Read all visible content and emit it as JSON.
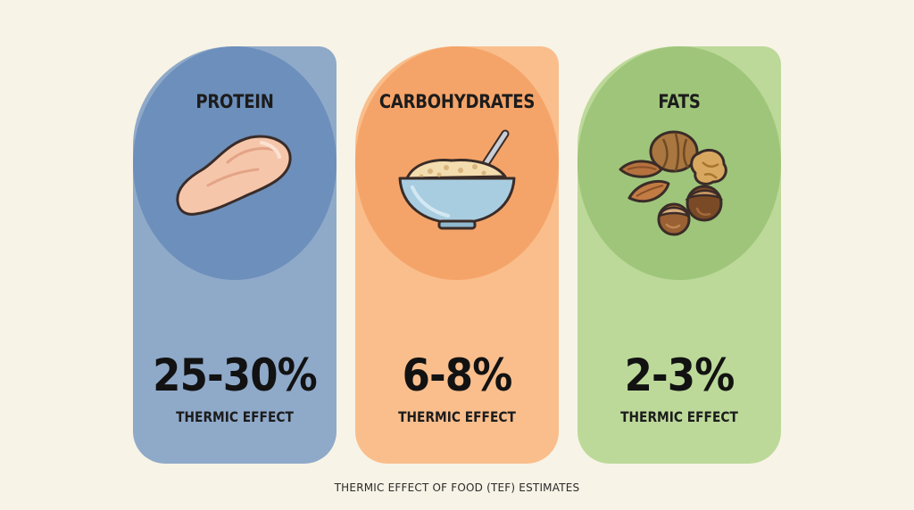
{
  "cards": [
    {
      "title": "PROTEIN",
      "value": "25-30%",
      "label": "THERMIC EFFECT",
      "icon": "chicken-breast-icon",
      "colors": {
        "card": "#8fa9c9",
        "blob": "#6d8fbb"
      }
    },
    {
      "title": "CARBOHYDRATES",
      "value": "6-8%",
      "label": "THERMIC EFFECT",
      "icon": "oatmeal-bowl-icon",
      "colors": {
        "card": "#f9be8c",
        "blob": "#f5a469"
      }
    },
    {
      "title": "FATS",
      "value": "2-3%",
      "label": "THERMIC EFFECT",
      "icon": "nuts-icon",
      "colors": {
        "card": "#bcd999",
        "blob": "#9fc57a"
      }
    }
  ],
  "caption": "THERMIC EFFECT OF FOOD (TEF) ESTIMATES",
  "background": "#f7f3e6"
}
